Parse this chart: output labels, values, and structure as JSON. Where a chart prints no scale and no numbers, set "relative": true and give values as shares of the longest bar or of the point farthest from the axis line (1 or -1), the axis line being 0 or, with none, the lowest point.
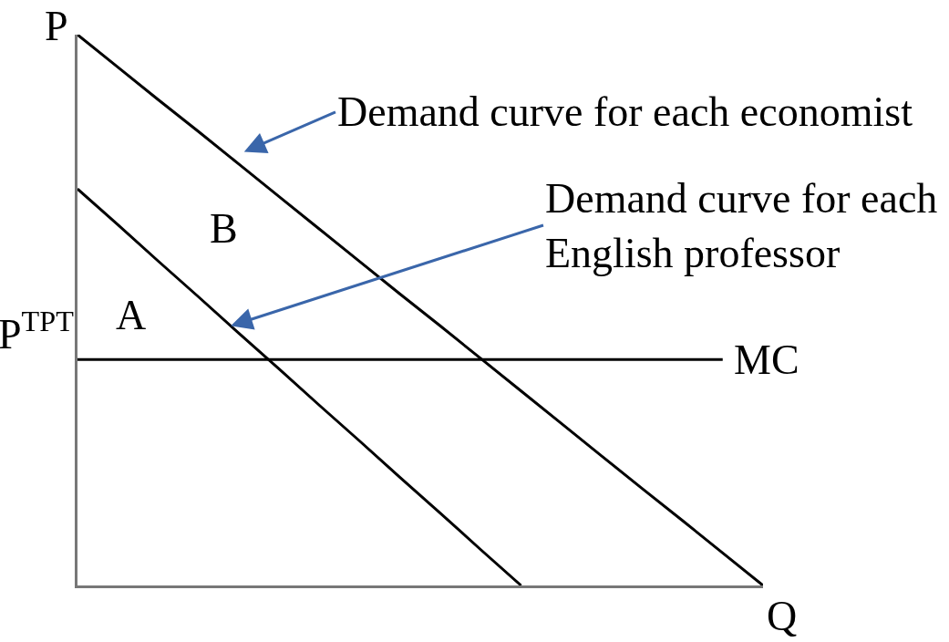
{
  "chart_data": {
    "type": "line",
    "relative": true,
    "xlabel": "Q",
    "ylabel": "P",
    "categories": [
      null,
      null,
      null,
      null,
      null,
      null,
      null,
      null,
      null,
      null,
      null,
      null,
      null,
      null,
      null,
      null,
      null,
      null
    ],
    "series": [
      {
        "name": "Demand curve for each economist",
        "color": "#000000",
        "values": [
          1,
          0.941,
          0.882,
          0.824,
          0.765,
          0.706,
          0.647,
          0.588,
          0.529,
          0.471,
          0.412,
          0.353,
          0.294,
          0.235,
          0.176,
          0.118,
          0.059,
          0
        ]
      },
      {
        "name": "Demand curve for each English professor",
        "color": "#000000",
        "values": [
          0.72,
          0.655,
          0.589,
          0.524,
          0.458,
          0.393,
          0.327,
          0.262,
          0.196,
          0.131,
          0.065,
          0,
          null,
          null,
          null,
          null,
          null,
          null
        ]
      },
      {
        "name": "MC",
        "color": "#000000",
        "values": [
          0.41,
          0.41,
          0.41,
          0.41,
          0.41,
          0.41,
          0.41,
          0.41,
          0.41,
          0.41,
          0.41,
          0.41,
          0.41,
          0.41,
          0.41,
          0.41,
          0.41,
          null
        ]
      }
    ],
    "annotations": [
      "B",
      "A",
      "P$^{TPT}$"
    ],
    "legend": false,
    "marker": "none",
    "line_style": "solid"
  }
}
